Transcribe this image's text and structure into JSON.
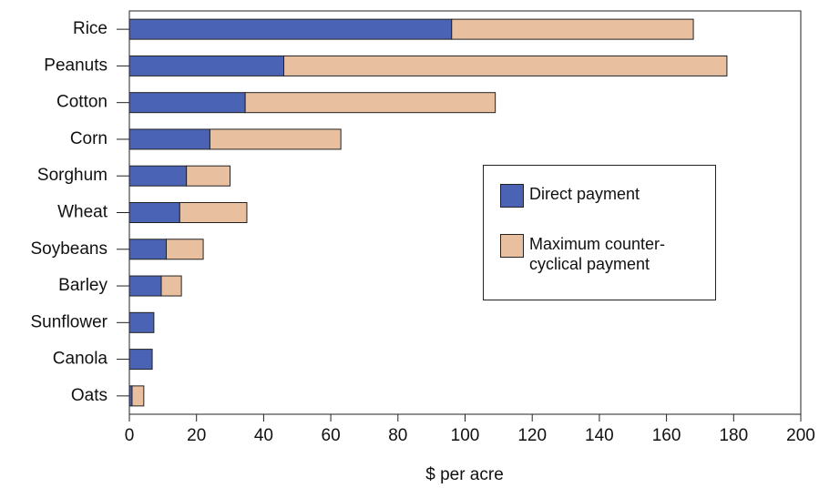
{
  "chart_data": {
    "type": "stacked_barh",
    "xlabel": "$ per acre",
    "categories": [
      "Rice",
      "Peanuts",
      "Cotton",
      "Corn",
      "Sorghum",
      "Wheat",
      "Soybeans",
      "Barley",
      "Sunflower",
      "Canola",
      "Oats"
    ],
    "series": [
      {
        "name": "Direct payment",
        "color": "#4a63b5",
        "values": [
          96,
          46,
          34.5,
          24,
          17,
          15,
          11,
          9.5,
          7.3,
          6.8,
          0.8
        ]
      },
      {
        "name": "Maximum counter-cyclical payment",
        "color": "#e8c0a0",
        "values": [
          72,
          132,
          74.5,
          39,
          13,
          20,
          11,
          6,
          0,
          0,
          3.5
        ]
      }
    ],
    "xlim": [
      0,
      200
    ],
    "xticks": [
      0,
      20,
      40,
      60,
      80,
      100,
      120,
      140,
      160,
      180,
      200
    ]
  }
}
